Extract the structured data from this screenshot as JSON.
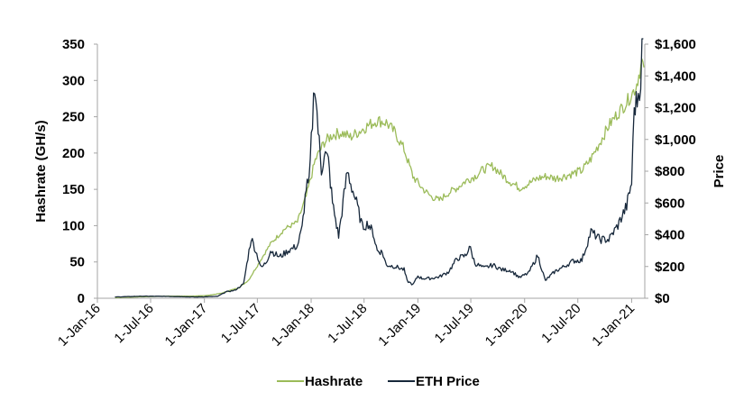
{
  "chart_data": {
    "type": "line",
    "title": "",
    "y_left": {
      "label": "Hashrate (GH/s)",
      "range": [
        0,
        350
      ],
      "ticks": [
        "0",
        "50",
        "100",
        "150",
        "200",
        "250",
        "300",
        "350"
      ]
    },
    "y_right": {
      "label": "Price",
      "range": [
        0,
        1600
      ],
      "ticks": [
        "$0",
        "$200",
        "$400",
        "$600",
        "$800",
        "$1,000",
        "$1,200",
        "$1,400",
        "$1,600"
      ]
    },
    "x_axis": {
      "range": [
        "2016-01-01",
        "2021-02-15"
      ],
      "ticks": [
        {
          "date": "2016-01-01",
          "label": "1-Jan-16"
        },
        {
          "date": "2016-07-01",
          "label": "1-Jul-16"
        },
        {
          "date": "2017-01-01",
          "label": "1-Jan-17"
        },
        {
          "date": "2017-07-01",
          "label": "1-Jul-17"
        },
        {
          "date": "2018-01-01",
          "label": "1-Jan-18"
        },
        {
          "date": "2018-07-01",
          "label": "1-Jul-18"
        },
        {
          "date": "2019-01-01",
          "label": "1-Jan-19"
        },
        {
          "date": "2019-07-01",
          "label": "1-Jul-19"
        },
        {
          "date": "2020-01-01",
          "label": "1-Jan-20"
        },
        {
          "date": "2020-07-01",
          "label": "1-Jul-20"
        },
        {
          "date": "2021-01-01",
          "label": "1-Jan-21"
        }
      ]
    },
    "legend": "bottom-center",
    "series": [
      {
        "name": "Hashrate",
        "axis": "left",
        "color": "#9bbb59",
        "points": [
          [
            "2016-03-01",
            1
          ],
          [
            "2016-06-01",
            2
          ],
          [
            "2016-09-01",
            3
          ],
          [
            "2016-12-01",
            3
          ],
          [
            "2017-01-15",
            4
          ],
          [
            "2017-03-01",
            7
          ],
          [
            "2017-05-01",
            15
          ],
          [
            "2017-06-01",
            25
          ],
          [
            "2017-07-01",
            45
          ],
          [
            "2017-08-15",
            75
          ],
          [
            "2017-10-01",
            95
          ],
          [
            "2017-11-15",
            105
          ],
          [
            "2017-12-15",
            140
          ],
          [
            "2018-01-15",
            190
          ],
          [
            "2018-02-15",
            215
          ],
          [
            "2018-03-15",
            225
          ],
          [
            "2018-04-15",
            228
          ],
          [
            "2018-05-15",
            222
          ],
          [
            "2018-06-15",
            230
          ],
          [
            "2018-07-15",
            238
          ],
          [
            "2018-08-15",
            245
          ],
          [
            "2018-09-15",
            242
          ],
          [
            "2018-10-15",
            228
          ],
          [
            "2018-11-15",
            205
          ],
          [
            "2018-12-15",
            168
          ],
          [
            "2019-01-15",
            152
          ],
          [
            "2019-02-15",
            140
          ],
          [
            "2019-03-15",
            135
          ],
          [
            "2019-04-15",
            145
          ],
          [
            "2019-05-15",
            152
          ],
          [
            "2019-06-15",
            162
          ],
          [
            "2019-07-15",
            168
          ],
          [
            "2019-08-15",
            178
          ],
          [
            "2019-09-15",
            182
          ],
          [
            "2019-10-15",
            170
          ],
          [
            "2019-11-15",
            160
          ],
          [
            "2019-12-15",
            152
          ],
          [
            "2020-01-15",
            158
          ],
          [
            "2020-02-15",
            165
          ],
          [
            "2020-03-15",
            168
          ],
          [
            "2020-04-15",
            165
          ],
          [
            "2020-05-15",
            168
          ],
          [
            "2020-06-15",
            172
          ],
          [
            "2020-07-15",
            176
          ],
          [
            "2020-08-15",
            192
          ],
          [
            "2020-09-15",
            215
          ],
          [
            "2020-10-15",
            238
          ],
          [
            "2020-11-15",
            255
          ],
          [
            "2020-12-15",
            270
          ],
          [
            "2021-01-15",
            290
          ],
          [
            "2021-02-05",
            325
          ],
          [
            "2021-02-12",
            318
          ]
        ]
      },
      {
        "name": "ETH Price",
        "axis": "right",
        "color": "#17283b",
        "points": [
          [
            "2016-03-01",
            8
          ],
          [
            "2016-06-01",
            13
          ],
          [
            "2016-09-01",
            12
          ],
          [
            "2016-12-01",
            8
          ],
          [
            "2017-01-15",
            10
          ],
          [
            "2017-02-15",
            12
          ],
          [
            "2017-03-15",
            40
          ],
          [
            "2017-04-15",
            50
          ],
          [
            "2017-05-15",
            90
          ],
          [
            "2017-06-10",
            380
          ],
          [
            "2017-06-25",
            300
          ],
          [
            "2017-07-15",
            190
          ],
          [
            "2017-08-01",
            230
          ],
          [
            "2017-08-15",
            300
          ],
          [
            "2017-09-15",
            260
          ],
          [
            "2017-10-15",
            300
          ],
          [
            "2017-11-15",
            330
          ],
          [
            "2017-12-01",
            440
          ],
          [
            "2017-12-15",
            700
          ],
          [
            "2017-12-25",
            720
          ],
          [
            "2018-01-13",
            1380
          ],
          [
            "2018-01-25",
            1060
          ],
          [
            "2018-02-05",
            800
          ],
          [
            "2018-02-15",
            920
          ],
          [
            "2018-03-01",
            860
          ],
          [
            "2018-03-15",
            600
          ],
          [
            "2018-04-05",
            390
          ],
          [
            "2018-04-20",
            600
          ],
          [
            "2018-05-05",
            800
          ],
          [
            "2018-05-20",
            700
          ],
          [
            "2018-06-05",
            600
          ],
          [
            "2018-06-25",
            450
          ],
          [
            "2018-07-15",
            470
          ],
          [
            "2018-08-01",
            410
          ],
          [
            "2018-08-15",
            300
          ],
          [
            "2018-09-01",
            290
          ],
          [
            "2018-09-15",
            210
          ],
          [
            "2018-10-15",
            200
          ],
          [
            "2018-11-15",
            180
          ],
          [
            "2018-11-25",
            110
          ],
          [
            "2018-12-15",
            85
          ],
          [
            "2019-01-01",
            140
          ],
          [
            "2019-01-15",
            125
          ],
          [
            "2019-02-15",
            125
          ],
          [
            "2019-03-15",
            135
          ],
          [
            "2019-04-15",
            165
          ],
          [
            "2019-05-15",
            250
          ],
          [
            "2019-06-15",
            270
          ],
          [
            "2019-06-26",
            330
          ],
          [
            "2019-07-15",
            220
          ],
          [
            "2019-08-15",
            190
          ],
          [
            "2019-09-15",
            210
          ],
          [
            "2019-10-15",
            180
          ],
          [
            "2019-11-15",
            175
          ],
          [
            "2019-12-15",
            130
          ],
          [
            "2020-01-15",
            160
          ],
          [
            "2020-02-15",
            270
          ],
          [
            "2020-03-12",
            110
          ],
          [
            "2020-03-25",
            135
          ],
          [
            "2020-04-15",
            170
          ],
          [
            "2020-05-15",
            200
          ],
          [
            "2020-06-15",
            235
          ],
          [
            "2020-07-15",
            240
          ],
          [
            "2020-08-15",
            420
          ],
          [
            "2020-09-15",
            370
          ],
          [
            "2020-10-15",
            370
          ],
          [
            "2020-11-15",
            460
          ],
          [
            "2020-12-15",
            580
          ],
          [
            "2021-01-01",
            730
          ],
          [
            "2021-01-10",
            1200
          ],
          [
            "2021-01-20",
            1250
          ],
          [
            "2021-02-01",
            1380
          ],
          [
            "2021-02-10",
            1800
          ]
        ]
      }
    ]
  }
}
